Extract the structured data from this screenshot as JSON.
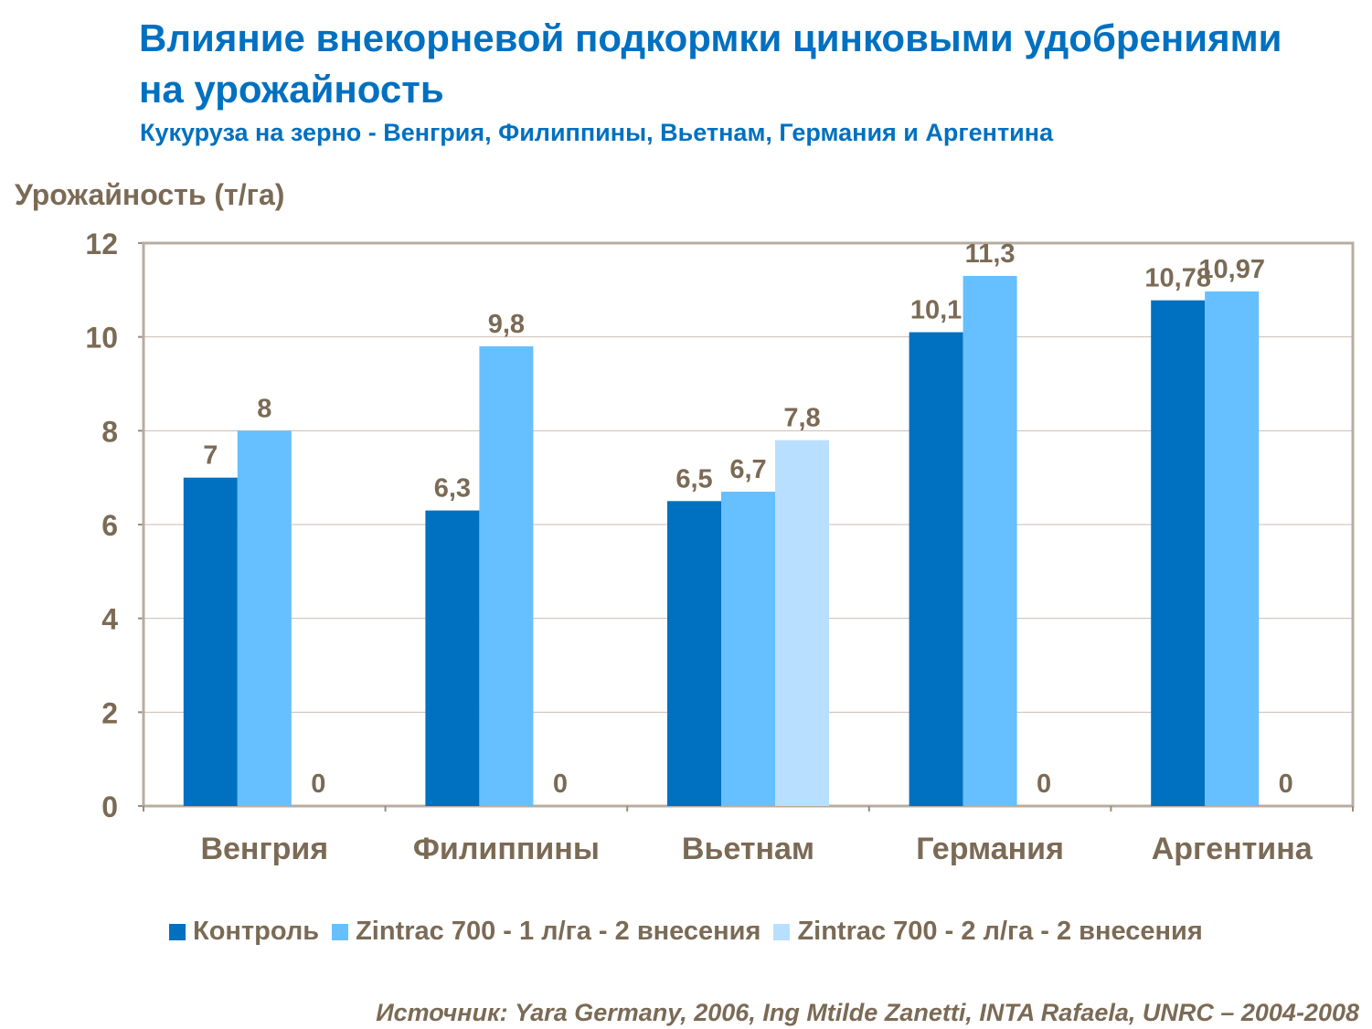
{
  "chart_data": {
    "type": "bar",
    "title": "Влияние внекорневой подкормки цинковыми удобрениями на урожайность",
    "subtitle": "Кукуруза на зерно - Венгрия, Филиппины, Вьетнам, Германия и  Аргентина",
    "ylabel": "Урожайность (т/га)",
    "xlabel": "",
    "ylim": [
      0,
      12
    ],
    "yticks": [
      0,
      2,
      4,
      6,
      8,
      10,
      12
    ],
    "grid": true,
    "legend_position": "bottom",
    "categories": [
      "Венгрия",
      "Филиппины",
      "Вьетнам",
      "Германия",
      "Аргентина"
    ],
    "series": [
      {
        "name": "Контроль",
        "color": "#0070C0",
        "values": [
          7,
          6.3,
          6.5,
          10.1,
          10.78
        ],
        "labels": [
          "7",
          "6,3",
          "6,5",
          "10,1",
          "10,78"
        ]
      },
      {
        "name": "Zintrac 700 - 1 л/га - 2 внесения",
        "color": "#66BFFF",
        "values": [
          8,
          9.8,
          6.7,
          11.3,
          10.97
        ],
        "labels": [
          "8",
          "9,8",
          "6,7",
          "11,3",
          "10,97"
        ]
      },
      {
        "name": "Zintrac 700 - 2 л/га - 2 внесения",
        "color": "#B8DFFF",
        "values": [
          0,
          0,
          7.8,
          0,
          0
        ],
        "labels": [
          "0",
          "0",
          "7,8",
          "0",
          "0"
        ]
      }
    ]
  },
  "source": "Источник: Yara Germany, 2006, Ing Mtilde Zanetti, INTA Rafaela, UNRC – 2004-2008"
}
